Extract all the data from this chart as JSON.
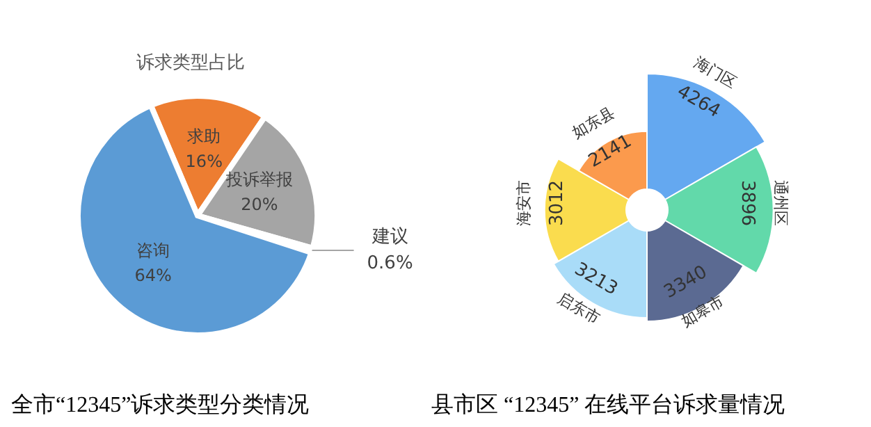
{
  "chart_data": [
    {
      "type": "pie",
      "title": "诉求类型占比",
      "categories": [
        "求助",
        "投诉举报",
        "建议",
        "咨询"
      ],
      "values": [
        16,
        20,
        0.6,
        64
      ],
      "value_labels": [
        "16%",
        "20%",
        "0.6%",
        "64%"
      ],
      "colors": [
        "#ed7d31",
        "#a5a5a5",
        "#ffc000",
        "#5b9bd5"
      ],
      "annotations": [
        "全市“12345”诉求类型分类情况"
      ]
    },
    {
      "type": "other",
      "categories": [
        "海门区",
        "通州区",
        "如皋市",
        "启东市",
        "海安市",
        "如东县"
      ],
      "values": [
        4264,
        3896,
        3340,
        3213,
        3012,
        2141
      ],
      "data_labels": true,
      "colors": [
        "#64a8f0",
        "#62d9aa",
        "#5b6a92",
        "#a9dcf8",
        "#fadc4e",
        "#fb9a4d"
      ],
      "annotations": [
        "县市区 “12345” 在线平台诉求量情况"
      ]
    }
  ]
}
